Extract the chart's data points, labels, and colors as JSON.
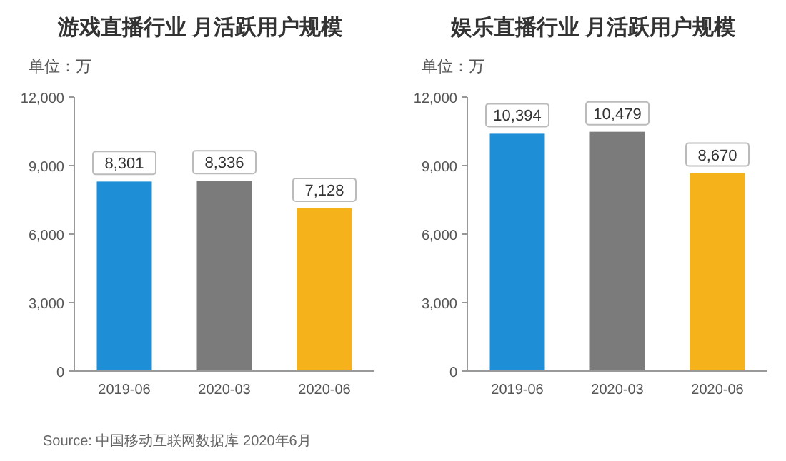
{
  "chart_data": [
    {
      "type": "bar",
      "title": "游戏直播行业 月活跃用户规模",
      "ylabel": "单位：万",
      "categories": [
        "2019-06",
        "2020-03",
        "2020-06"
      ],
      "values": [
        8301,
        8336,
        7128
      ],
      "colors": [
        "#1e8fd6",
        "#7b7b7b",
        "#f6b21b"
      ],
      "value_labels": [
        "8,301",
        "8,336",
        "7,128"
      ],
      "ylim": [
        0,
        12000
      ],
      "yticks": [
        0,
        {
          "value": 3000,
          "label": "3,000"
        },
        {
          "value": 6000,
          "label": "6,000"
        },
        {
          "value": 9000,
          "label": "9,000"
        },
        {
          "value": 12000,
          "label": "12,000"
        }
      ],
      "annotations": [
        "Source: 中国移动互联网数据库 2020年6月"
      ]
    },
    {
      "type": "bar",
      "title": "娱乐直播行业 月活跃用户规模",
      "ylabel": "单位：万",
      "categories": [
        "2019-06",
        "2020-03",
        "2020-06"
      ],
      "values": [
        10394,
        10479,
        8670
      ],
      "colors": [
        "#1e8fd6",
        "#7b7b7b",
        "#f6b21b"
      ],
      "value_labels": [
        "10,394",
        "10,479",
        "8,670"
      ],
      "ylim": [
        0,
        12000
      ],
      "yticks": [
        0,
        {
          "value": 3000,
          "label": "3,000"
        },
        {
          "value": 6000,
          "label": "6,000"
        },
        {
          "value": 9000,
          "label": "9,000"
        },
        {
          "value": 12000,
          "label": "12,000"
        }
      ]
    }
  ]
}
